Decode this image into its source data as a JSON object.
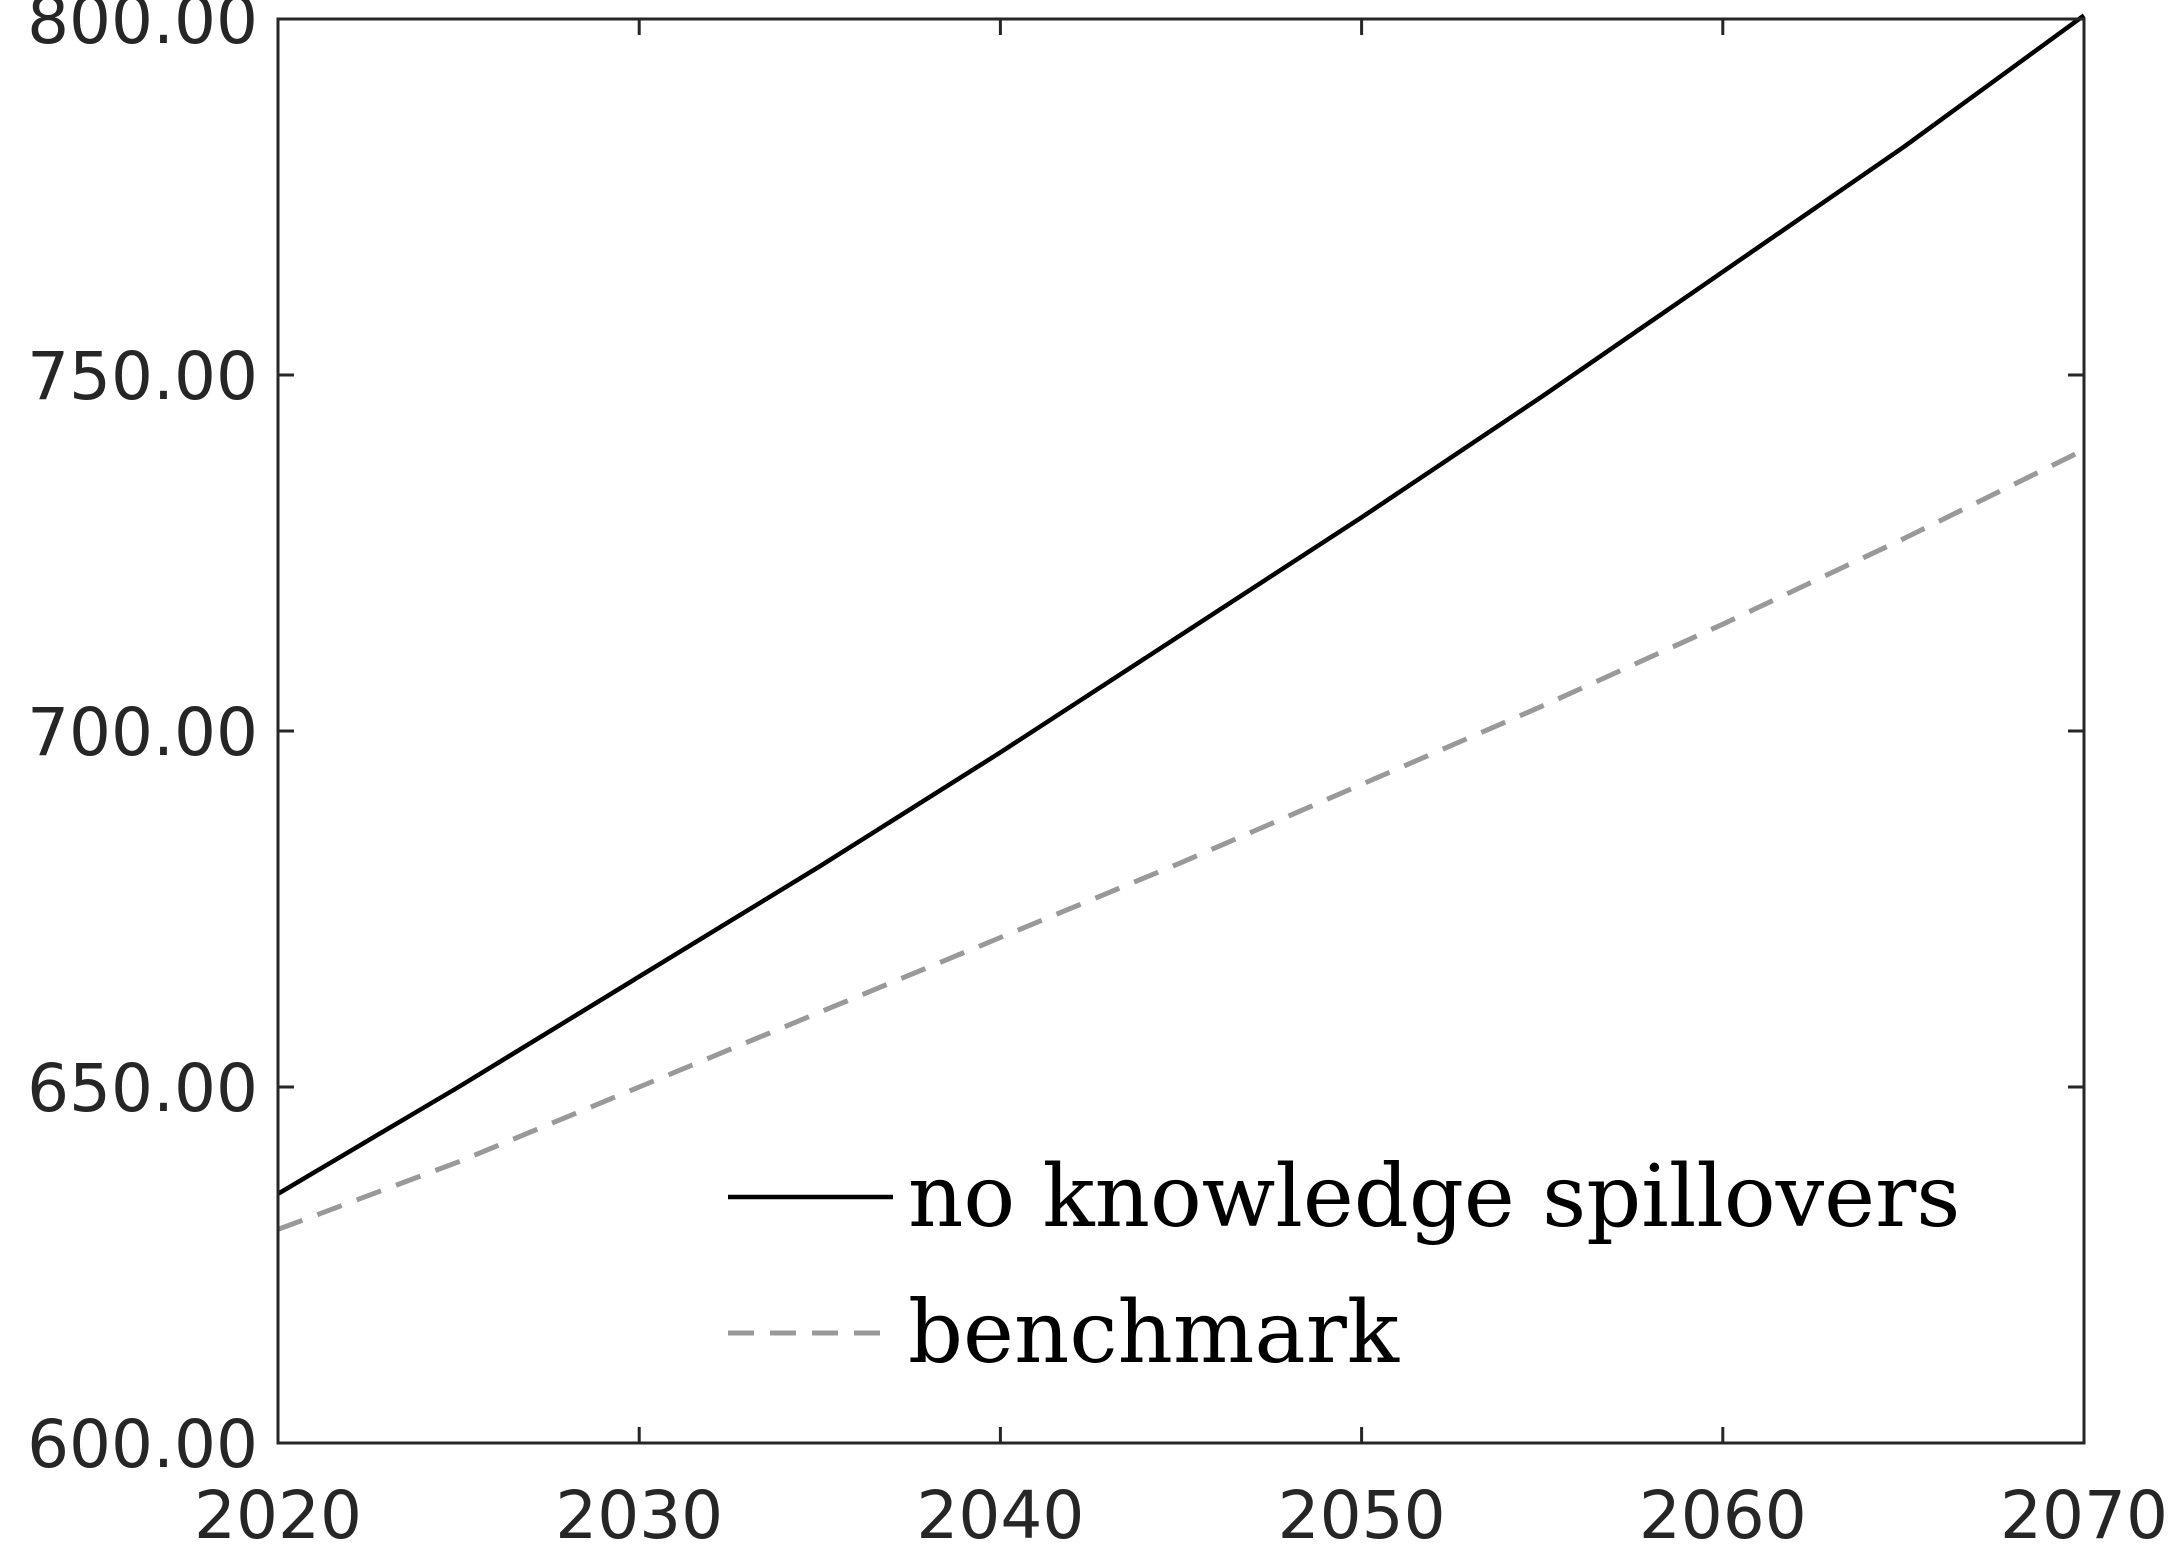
{
  "chart_data": {
    "type": "line",
    "title": "",
    "xlabel": "",
    "ylabel": "",
    "xlim": [
      2020,
      2070
    ],
    "ylim": [
      600,
      800
    ],
    "x_ticks": [
      2020,
      2030,
      2040,
      2050,
      2060,
      2070
    ],
    "x_tick_labels": [
      "2020",
      "2030",
      "2040",
      "2050",
      "2060",
      "2070"
    ],
    "y_ticks": [
      600,
      650,
      700,
      750,
      800
    ],
    "y_tick_labels": [
      "600.00",
      "650.00",
      "700.00",
      "750.00",
      "800.00"
    ],
    "grid": false,
    "legend_position": "bottom-right",
    "x": [
      2020,
      2025,
      2030,
      2035,
      2040,
      2045,
      2050,
      2055,
      2060,
      2065,
      2070
    ],
    "series": [
      {
        "name": "no knowledge spillovers",
        "color": "#000000",
        "style": "solid",
        "values": [
          635,
          650,
          665.5,
          681,
          697,
          713.5,
          730,
          747,
          764.5,
          782,
          800.5
        ]
      },
      {
        "name": "benchmark",
        "color": "#999999",
        "style": "dashed",
        "values": [
          630,
          639.5,
          650,
          660.5,
          671,
          681.5,
          692.5,
          703.5,
          715,
          727,
          739.5
        ]
      }
    ]
  }
}
